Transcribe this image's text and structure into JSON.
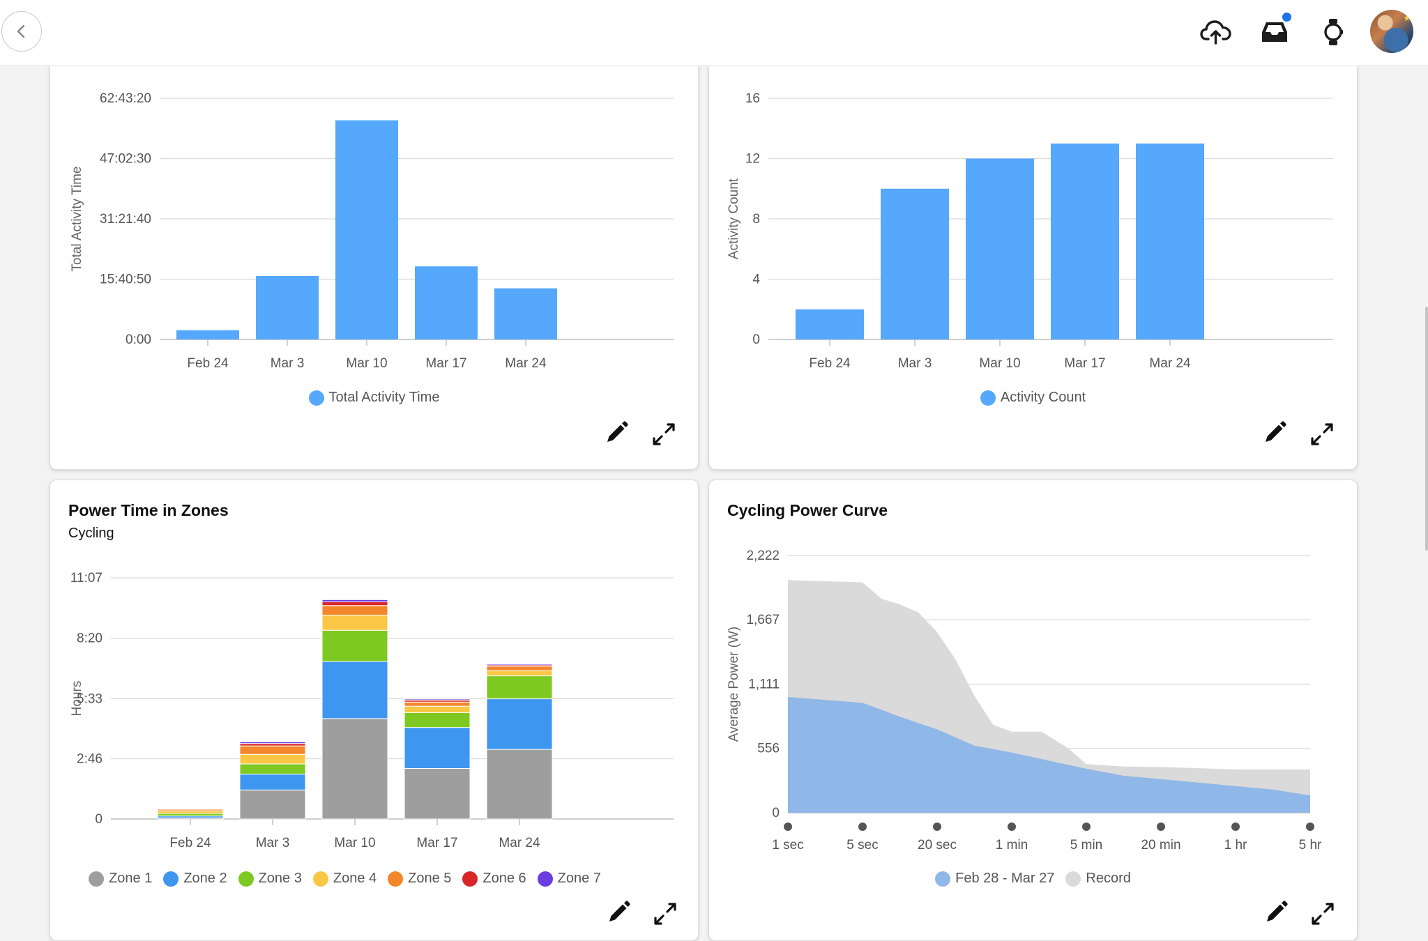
{
  "header": {
    "back_icon": "chevron-left-icon",
    "icons": [
      "cloud-upload-icon",
      "inbox-icon",
      "watch-icon"
    ],
    "notification_color": "#1a73e8"
  },
  "colors": {
    "bar_blue": "#55a8fb",
    "grid": "#d9d9d9"
  },
  "cards": {
    "total_time": {
      "legend": "Total Activity Time"
    },
    "activity_count": {
      "legend": "Activity Count"
    },
    "power_zones": {
      "title": "Power Time in Zones",
      "subtitle": "Cycling"
    },
    "power_curve": {
      "title": "Cycling Power Curve"
    }
  },
  "chart_data": [
    {
      "id": "total_time",
      "type": "bar",
      "categories": [
        "Feb 24",
        "Mar 3",
        "Mar 10",
        "Mar 17",
        "Mar 24"
      ],
      "series": [
        {
          "name": "Total Activity Time",
          "values": [
            2.4,
            16.5,
            57.0,
            19.0,
            13.3
          ],
          "color": "#55a8fb"
        }
      ],
      "ylabel": "Total Activity Time",
      "yticks": [
        0,
        15.6806,
        31.3611,
        47.0417,
        62.7222
      ],
      "yticklabels": [
        "0:00",
        "15:40:50",
        "31:21:40",
        "47:02:30",
        "62:43:20"
      ],
      "ylim": [
        0,
        62.7222
      ],
      "grid": true,
      "legend_position": "bottom"
    },
    {
      "id": "activity_count",
      "type": "bar",
      "categories": [
        "Feb 24",
        "Mar 3",
        "Mar 10",
        "Mar 17",
        "Mar 24"
      ],
      "series": [
        {
          "name": "Activity Count",
          "values": [
            2,
            10,
            12,
            13,
            13
          ],
          "color": "#55a8fb"
        }
      ],
      "ylabel": "Activity Count",
      "yticks": [
        0,
        4,
        8,
        12,
        16
      ],
      "yticklabels": [
        "0",
        "4",
        "8",
        "12",
        "16"
      ],
      "ylim": [
        0,
        16
      ],
      "grid": true,
      "legend_position": "bottom"
    },
    {
      "id": "power_zones",
      "type": "bar",
      "stacked": true,
      "categories": [
        "Feb 24",
        "Mar 3",
        "Mar 10",
        "Mar 17",
        "Mar 24"
      ],
      "series": [
        {
          "name": "Zone 1",
          "values": [
            0.05,
            1.34,
            4.63,
            2.33,
            3.21
          ],
          "color": "#9e9e9e"
        },
        {
          "name": "Zone 2",
          "values": [
            0.09,
            0.73,
            2.63,
            1.89,
            2.33
          ],
          "color": "#3d96f0"
        },
        {
          "name": "Zone 3",
          "values": [
            0.12,
            0.47,
            1.44,
            0.68,
            1.06
          ],
          "color": "#7ec822"
        },
        {
          "name": "Zone 4",
          "values": [
            0.12,
            0.44,
            0.7,
            0.3,
            0.24
          ],
          "color": "#f9c744"
        },
        {
          "name": "Zone 5",
          "values": [
            0.07,
            0.39,
            0.44,
            0.19,
            0.2
          ],
          "color": "#f4862b"
        },
        {
          "name": "Zone 6",
          "values": [
            0.03,
            0.11,
            0.17,
            0.09,
            0.06
          ],
          "color": "#d92525"
        },
        {
          "name": "Zone 7",
          "values": [
            0.02,
            0.08,
            0.1,
            0.05,
            0.05
          ],
          "color": "#6a3de0"
        }
      ],
      "ylabel": "Hours",
      "yticks": [
        0,
        2.7778,
        5.55,
        8.3333,
        11.1167
      ],
      "yticklabels": [
        "0",
        "2:46",
        "5:33",
        "8:20",
        "11:07"
      ],
      "ylim": [
        0,
        11.1167
      ],
      "grid": true,
      "legend_position": "bottom"
    },
    {
      "id": "power_curve",
      "type": "area",
      "x": [
        "1 sec",
        "5 sec",
        "20 sec",
        "1 min",
        "5 min",
        "20 min",
        "1 hr",
        "5 hr"
      ],
      "series": [
        {
          "name": "Feb 28 - Mar 27",
          "color": "#8fb7e7",
          "points": [
            [
              0,
              1000
            ],
            [
              0.5,
              975
            ],
            [
              1,
              950
            ],
            [
              1.5,
              830
            ],
            [
              2,
              720
            ],
            [
              2.5,
              580
            ],
            [
              3,
              520
            ],
            [
              3.5,
              450
            ],
            [
              4,
              380
            ],
            [
              4.5,
              320
            ],
            [
              5,
              290
            ],
            [
              5.5,
              260
            ],
            [
              6,
              230
            ],
            [
              6.5,
              200
            ],
            [
              7,
              150
            ]
          ]
        },
        {
          "name": "Record",
          "color": "#dadada",
          "points": [
            [
              0,
              2010
            ],
            [
              0.5,
              2000
            ],
            [
              1,
              1990
            ],
            [
              1.25,
              1850
            ],
            [
              1.5,
              1800
            ],
            [
              1.75,
              1730
            ],
            [
              2,
              1560
            ],
            [
              2.25,
              1320
            ],
            [
              2.5,
              1010
            ],
            [
              2.75,
              760
            ],
            [
              3,
              700
            ],
            [
              3.4,
              700
            ],
            [
              3.75,
              560
            ],
            [
              4,
              420
            ],
            [
              4.5,
              400
            ],
            [
              5,
              395
            ],
            [
              5.5,
              385
            ],
            [
              6,
              375
            ],
            [
              6.5,
              375
            ],
            [
              7,
              375
            ]
          ]
        }
      ],
      "ylabel": "Average Power (W)",
      "yticks": [
        0,
        556,
        1111,
        1667,
        2222
      ],
      "yticklabels": [
        "0",
        "556",
        "1,111",
        "1,667",
        "2,222"
      ],
      "ylim": [
        0,
        2222
      ],
      "grid": true,
      "legend_position": "bottom"
    }
  ]
}
